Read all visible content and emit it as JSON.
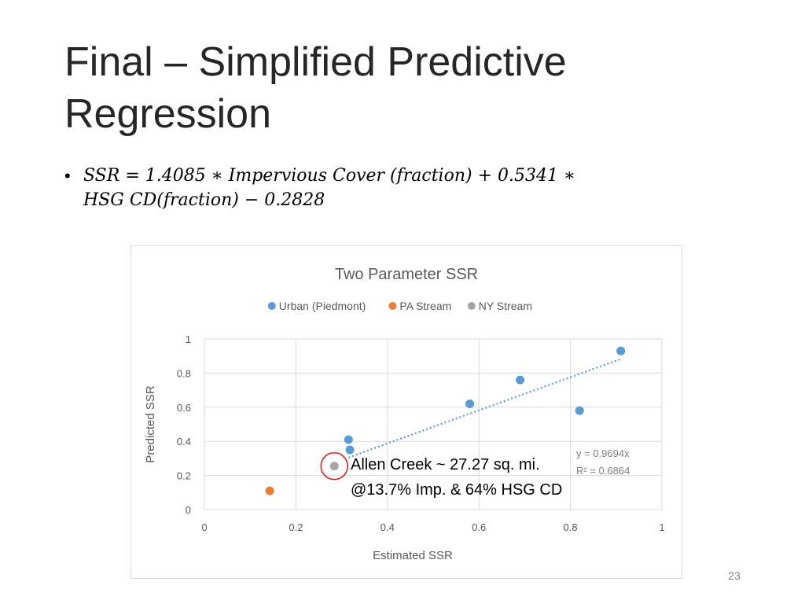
{
  "slide": {
    "title": "Final – Simplified Predictive Regression",
    "formula_bullet": "•",
    "formula_line1": "SSR = 1.4085 ∗ Impervious Cover (fraction) + 0.5341 ∗",
    "formula_line2": "HSG CD(fraction) − 0.2828",
    "annotation_line1": "Allen Creek ~ 27.27 sq. mi.",
    "annotation_line2": "@13.7% Imp. & 64% HSG CD",
    "page_number": "23"
  },
  "chart_data": {
    "type": "scatter",
    "title": "Two Parameter SSR",
    "xlabel": "Estimated SSR",
    "ylabel": "Predicted SSR",
    "xlim": [
      0,
      1
    ],
    "ylim": [
      0,
      1
    ],
    "xticks": [
      0,
      0.2,
      0.4,
      0.6,
      0.8,
      1
    ],
    "xtick_labels": [
      "0",
      "0.2",
      "0.4",
      "0.6",
      "0.8",
      "1"
    ],
    "yticks": [
      0,
      0.2,
      0.4,
      0.6,
      0.8,
      1
    ],
    "ytick_labels": [
      "0",
      "0.2",
      "0.4",
      "0.6",
      "0.8",
      "1"
    ],
    "grid": true,
    "legend_position": "top",
    "series": [
      {
        "name": "Urban (Piedmont)",
        "color": "#5b9bd5",
        "points": [
          {
            "x": 0.315,
            "y": 0.41
          },
          {
            "x": 0.318,
            "y": 0.35
          },
          {
            "x": 0.58,
            "y": 0.62
          },
          {
            "x": 0.69,
            "y": 0.76
          },
          {
            "x": 0.82,
            "y": 0.58
          },
          {
            "x": 0.91,
            "y": 0.93
          }
        ]
      },
      {
        "name": "PA Stream",
        "color": "#ed7d31",
        "points": [
          {
            "x": 0.143,
            "y": 0.11
          }
        ]
      },
      {
        "name": "NY Stream",
        "color": "#a5a5a5",
        "points": [
          {
            "x": 0.284,
            "y": 0.255
          }
        ]
      }
    ],
    "trendline": {
      "series": "Urban (Piedmont)",
      "slope": 0.9694,
      "x_range": [
        0.315,
        0.91
      ],
      "color": "#5b9bd5",
      "equation": "y = 0.9694x",
      "r2": "R² = 0.6864"
    },
    "highlight": {
      "x": 0.284,
      "y": 0.255,
      "color": "#e02020"
    }
  }
}
